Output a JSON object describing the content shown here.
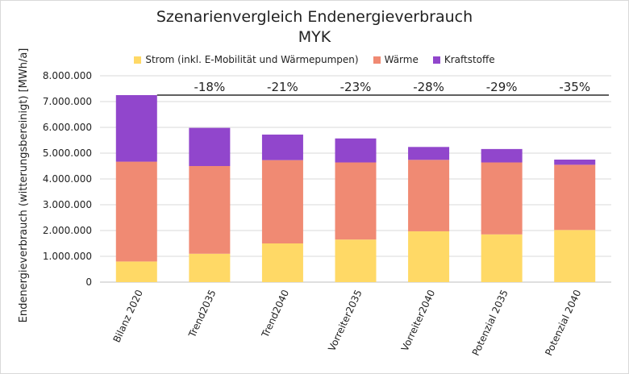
{
  "chart_data": {
    "type": "bar",
    "stacked": true,
    "title": "Szenarienvergleich  Endenergieverbrauch",
    "subtitle": "MYK",
    "ylabel": "Endenergieverbrauch (witterungsbereinigt) [MWh/a]",
    "xlabel": "",
    "ylim": [
      0,
      8000000
    ],
    "yticks": [
      "0",
      "1.000.000",
      "2.000.000",
      "3.000.000",
      "4.000.000",
      "5.000.000",
      "6.000.000",
      "7.000.000",
      "8.000.000"
    ],
    "ytick_values": [
      0,
      1000000,
      2000000,
      3000000,
      4000000,
      5000000,
      6000000,
      7000000,
      8000000
    ],
    "categories": [
      "Bilanz 2020",
      "Trend2035",
      "Trend2040",
      "Vorreiter2035",
      "Vorreiter2040",
      "Potenzial 2035",
      "Potenzial 2040"
    ],
    "series": [
      {
        "name": "Strom (inkl. E-Mobilität und Wärmepumpen)",
        "color": "#ffd966",
        "values": [
          800000,
          1100000,
          1500000,
          1650000,
          1970000,
          1850000,
          2020000
        ]
      },
      {
        "name": "Wärme",
        "color": "#f08a73",
        "values": [
          3870000,
          3400000,
          3230000,
          2990000,
          2770000,
          2790000,
          2530000
        ]
      },
      {
        "name": "Kraftstoffe",
        "color": "#9146cc",
        "values": [
          2580000,
          1480000,
          990000,
          930000,
          500000,
          520000,
          200000
        ]
      }
    ],
    "annotations": [
      "-18%",
      "-21%",
      "-23%",
      "-28%",
      "-29%",
      "-35%"
    ],
    "reference_line_value": 7250000,
    "legend_position": "top",
    "grid": true
  }
}
